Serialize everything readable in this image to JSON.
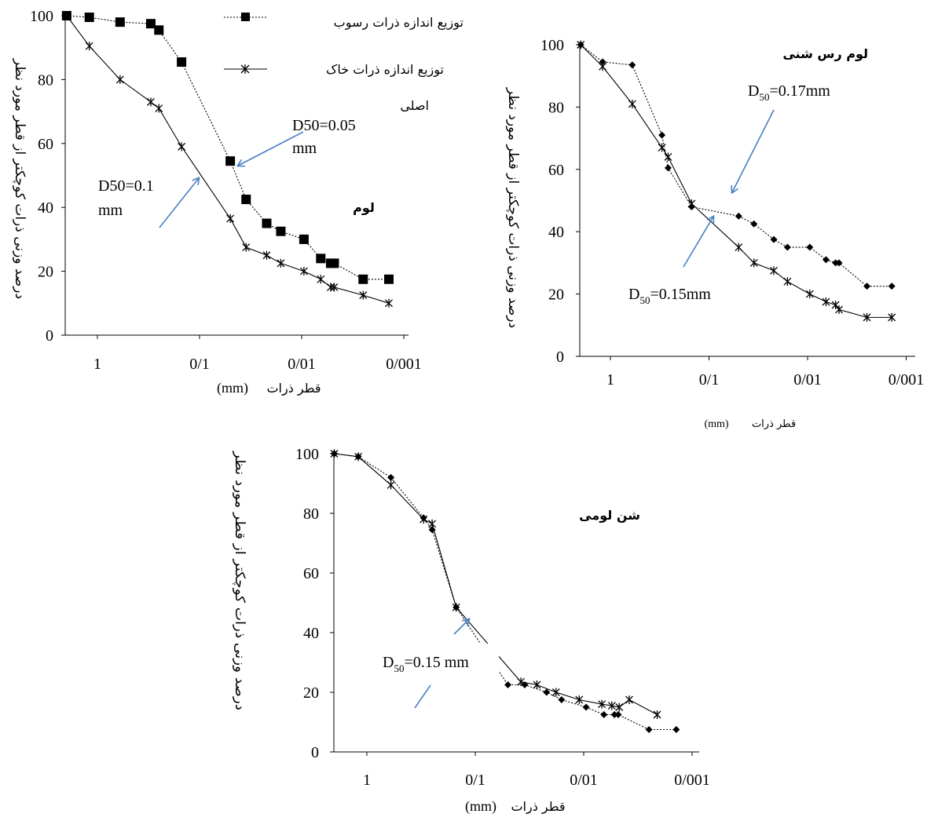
{
  "chart_data": [
    {
      "id": "c1",
      "type": "line",
      "title": "لوم",
      "xlabel_fa": "قطر ذرات",
      "xlabel_unit": "(mm)",
      "ylabel": "درصد وزنی ذرات کوچکتر از قطر مورد نظر",
      "x_scale": "log",
      "x_reversed": true,
      "xlim": [
        2,
        0.0007
      ],
      "ylim": [
        0,
        100
      ],
      "yticks": [
        "0",
        "20",
        "40",
        "60",
        "80",
        "100"
      ],
      "xticks": [
        "1",
        "0/1",
        "0/01",
        "0/001"
      ],
      "legend": [
        {
          "label": "توزیع اندازه ذرات رسوب",
          "series": 0
        },
        {
          "label": "توزیع اندازه ذرات خاک",
          "series": 1
        }
      ],
      "legend_extra": "اصلی",
      "annotations": [
        "D50=0.05",
        "mm",
        "D50=0.1",
        "mm"
      ],
      "series": [
        {
          "marker": "square",
          "dash": "2,2",
          "color": "#000000",
          "x": [
            2,
            1.2,
            0.6,
            0.3,
            0.25,
            0.15,
            0.05,
            0.035,
            0.022,
            0.016,
            0.0095,
            0.0065,
            0.0052,
            0.0048,
            0.0025,
            0.0014
          ],
          "y": [
            100,
            99.5,
            98,
            97.5,
            95.5,
            85.5,
            54.5,
            42.5,
            35,
            32.5,
            30,
            24,
            22.5,
            22.5,
            17.5,
            17.5
          ]
        },
        {
          "marker": "asterisk",
          "dash": "",
          "color": "#000000",
          "x": [
            2,
            1.2,
            0.6,
            0.3,
            0.25,
            0.15,
            0.05,
            0.035,
            0.022,
            0.016,
            0.0095,
            0.0065,
            0.0052,
            0.0048,
            0.0025,
            0.0014
          ],
          "y": [
            100,
            90.5,
            80,
            73,
            71,
            59,
            36.5,
            27.5,
            25,
            22.5,
            20,
            17.5,
            15,
            15,
            12.5,
            10
          ]
        }
      ]
    },
    {
      "id": "c2",
      "type": "line",
      "title": "لوم رس شنی",
      "xlabel_fa": "قطر ذرات",
      "xlabel_unit": "(mm)",
      "ylabel": "درصد وزنی ذرات کوچکتر از قطر مورد نظر",
      "x_scale": "log",
      "x_reversed": true,
      "xlim": [
        2,
        0.0007
      ],
      "ylim": [
        0,
        100
      ],
      "yticks": [
        "0",
        "20",
        "40",
        "60",
        "80",
        "100"
      ],
      "xticks": [
        "1",
        "0/1",
        "0/01",
        "0/001"
      ],
      "annotations": [
        "D",
        "50",
        "=0.17mm",
        "D",
        "50",
        "=0.15mm"
      ],
      "series": [
        {
          "marker": "diamond",
          "dash": "2,2",
          "color": "#000000",
          "x": [
            2,
            1.2,
            0.6,
            0.3,
            0.26,
            0.15,
            0.05,
            0.035,
            0.022,
            0.016,
            0.0095,
            0.0065,
            0.0052,
            0.0048,
            0.0025,
            0.0014
          ],
          "y": [
            100,
            94.5,
            93.5,
            71,
            60.5,
            48,
            45,
            42.5,
            37.5,
            35,
            35,
            31,
            30,
            30,
            22.5,
            22.5
          ]
        },
        {
          "marker": "asterisk",
          "dash": "",
          "color": "#000000",
          "x": [
            2,
            1.2,
            0.6,
            0.3,
            0.26,
            0.15,
            0.05,
            0.035,
            0.022,
            0.016,
            0.0095,
            0.0065,
            0.0052,
            0.0048,
            0.0025,
            0.0014
          ],
          "y": [
            100,
            93,
            81,
            67,
            64,
            49,
            35,
            30,
            27.5,
            24,
            20,
            17.5,
            16.5,
            15,
            12.5,
            12.5
          ]
        }
      ]
    },
    {
      "id": "c3",
      "type": "line",
      "title": "شن لومی",
      "xlabel_fa": "قطر ذرات",
      "xlabel_unit": "(mm)",
      "ylabel": "درصد وزنی ذرات کوچکتر از قطر مورد نظر",
      "x_scale": "log",
      "x_reversed": true,
      "xlim": [
        2,
        0.0007
      ],
      "ylim": [
        0,
        100
      ],
      "yticks": [
        "0",
        "20",
        "40",
        "60",
        "80",
        "100"
      ],
      "xticks": [
        "1",
        "0/1",
        "0/01",
        "0/001"
      ],
      "annotations": [
        "D",
        "50",
        "=0.15 mm"
      ],
      "series": [
        {
          "marker": "diamond",
          "dash": "2,2",
          "color": "#000000",
          "x": [
            2,
            1.2,
            0.6,
            0.3,
            0.25,
            0.15,
            0.05,
            0.035,
            0.022,
            0.016,
            0.0095,
            0.0065,
            0.0052,
            0.0048,
            0.0025,
            0.0014
          ],
          "y": [
            100,
            99,
            92,
            78.5,
            74.5,
            48.5,
            22.5,
            22.5,
            20,
            17.5,
            15,
            12.5,
            12.5,
            12.5,
            7.5,
            7.5
          ]
        },
        {
          "marker": "asterisk",
          "dash": "",
          "color": "#000000",
          "x": [
            2,
            1.2,
            0.6,
            0.3,
            0.25,
            0.15,
            0.038,
            0.027,
            0.018,
            0.011,
            0.0068,
            0.0055,
            0.0047,
            0.0038,
            0.0021
          ],
          "y": [
            100,
            99,
            89.5,
            78,
            76.5,
            48.5,
            23.5,
            22.5,
            20,
            17.5,
            16,
            15.5,
            15,
            17.5,
            12.5
          ]
        }
      ]
    }
  ]
}
